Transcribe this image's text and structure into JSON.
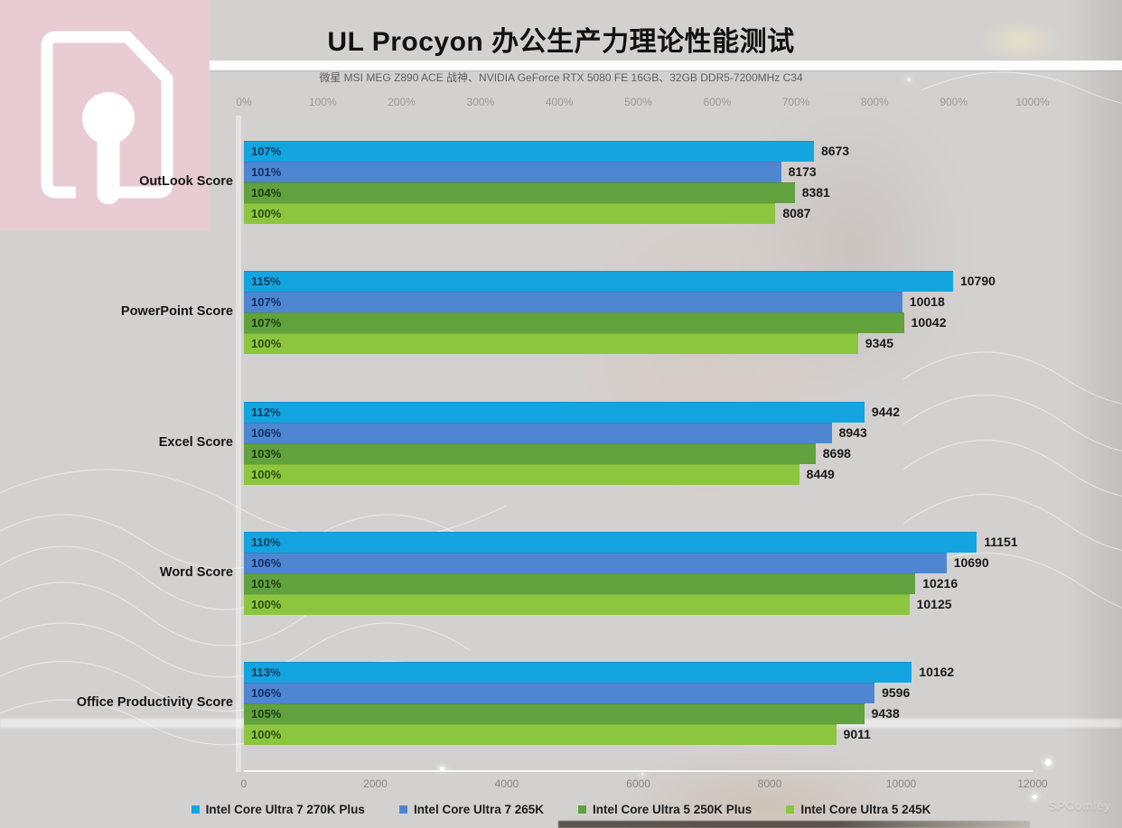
{
  "header": {
    "title": "UL Procyon  办公生产力理论性能测试",
    "subtitle": "微星 MSI MEG Z890 ACE 战神、NVIDIA GeForce RTX 5080 FE 16GB、32GB DDR5-7200MHz C34"
  },
  "logo": {
    "background_color": "#e9cbd4",
    "icon": "document-pin-icon",
    "icon_color": "#ffffff"
  },
  "watermark": "SPComley",
  "colors": {
    "page_background": "#d3d1d0",
    "series": [
      "#14a5e1",
      "#4f86d1",
      "#61a23f",
      "#8cc63f"
    ]
  },
  "chart_data": {
    "type": "bar",
    "orientation": "horizontal",
    "title": "UL Procyon  办公生产力理论性能测试",
    "subtitle": "微星 MSI MEG Z890 ACE 战神、NVIDIA GeForce RTX 5080 FE 16GB、32GB DDR5-7200MHz C34",
    "top_axis": {
      "label": "percent",
      "range": [
        0,
        1000
      ],
      "ticks": [
        "0%",
        "100%",
        "200%",
        "300%",
        "400%",
        "500%",
        "600%",
        "700%",
        "800%",
        "900%",
        "1000%"
      ]
    },
    "bottom_axis": {
      "label": "score",
      "range": [
        0,
        12000
      ],
      "ticks": [
        "0",
        "2000",
        "4000",
        "6000",
        "8000",
        "10000",
        "12000"
      ]
    },
    "categories": [
      "OutLook Score",
      "PowerPoint Score",
      "Excel Score",
      "Word Score",
      "Office Productivity Score"
    ],
    "series": [
      {
        "name": "Intel Core Ultra 7 270K Plus",
        "color": "#14a5e1",
        "label_color": "#0e3d5c",
        "values": [
          8673,
          10790,
          9442,
          11151,
          10162
        ],
        "percents": [
          "107%",
          "115%",
          "112%",
          "110%",
          "113%"
        ]
      },
      {
        "name": "Intel Core Ultra 7 265K",
        "color": "#4f86d1",
        "label_color": "#132f64",
        "values": [
          8173,
          10018,
          8943,
          10690,
          9596
        ],
        "percents": [
          "101%",
          "107%",
          "106%",
          "106%",
          "106%"
        ]
      },
      {
        "name": "Intel Core Ultra 5 250K Plus",
        "color": "#61a23f",
        "label_color": "#203d12",
        "values": [
          8381,
          10042,
          8698,
          10216,
          9438
        ],
        "percents": [
          "104%",
          "107%",
          "103%",
          "101%",
          "105%"
        ]
      },
      {
        "name": "Intel Core Ultra 5 245K",
        "color": "#8cc63f",
        "label_color": "#2e4b13",
        "values": [
          8087,
          9345,
          8449,
          10125,
          9011
        ],
        "percents": [
          "100%",
          "100%",
          "100%",
          "100%",
          "100%"
        ]
      }
    ],
    "legend_position": "bottom",
    "grid": false
  }
}
